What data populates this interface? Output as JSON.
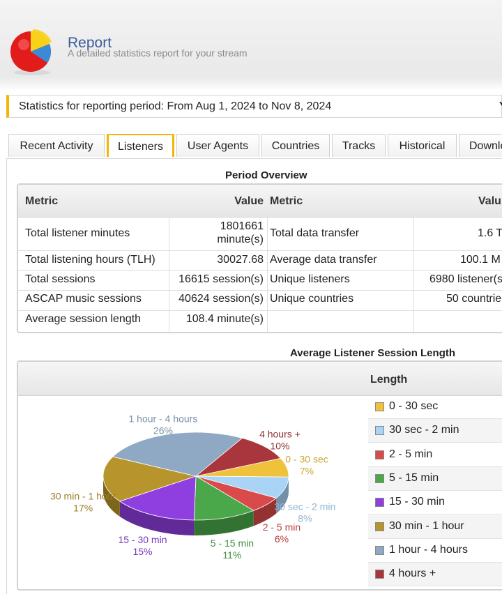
{
  "header": {
    "title": "Report",
    "subtitle": "A detailed statistics report for your stream"
  },
  "period": {
    "text": "Statistics for reporting period: From Aug 1, 2024 to Nov 8, 2024",
    "right_fragment": "Y"
  },
  "tabs": [
    {
      "label": "Recent Activity"
    },
    {
      "label": "Listeners"
    },
    {
      "label": "User Agents"
    },
    {
      "label": "Countries"
    },
    {
      "label": "Tracks"
    },
    {
      "label": "Historical"
    },
    {
      "label": "Downlo"
    }
  ],
  "active_tab": "Listeners",
  "overview": {
    "title": "Period Overview",
    "headers": {
      "metric": "Metric",
      "value": "Value",
      "metric2": "Metric",
      "value2": "Valu"
    },
    "rows": [
      {
        "m1": "Total listener minutes",
        "v1a": "1801661",
        "v1b": "minute(s)",
        "m2": "Total data transfer",
        "v2": "1.6 T"
      },
      {
        "m1": "Total listening hours (TLH)",
        "v1": "30027.68",
        "m2": "Average data transfer",
        "v2": "100.1 M"
      },
      {
        "m1": "Total sessions",
        "v1": "16615 session(s)",
        "m2": "Unique listeners",
        "v2": "6980 listener(s"
      },
      {
        "m1": "ASCAP music sessions",
        "v1": "40624 session(s)",
        "m2": "Unique countries",
        "v2": "50 countrie"
      },
      {
        "m1": "Average session length",
        "v1": "108.4 minute(s)",
        "m2": "",
        "v2": ""
      }
    ]
  },
  "chart_data": {
    "type": "pie",
    "title": "Average Listener Session Length",
    "legend_title": "Length",
    "slices": [
      {
        "label": "0 - 30 sec",
        "percent": 7,
        "percent_label": "7%",
        "color": "#f0c23b"
      },
      {
        "label": "30 sec - 2 min",
        "percent": 8,
        "percent_label": "8%",
        "color": "#a9d4f5"
      },
      {
        "label": "2 - 5 min",
        "percent": 6,
        "percent_label": "6%",
        "color": "#d94a4a"
      },
      {
        "label": "5 - 15 min",
        "percent": 11,
        "percent_label": "11%",
        "color": "#4aa84a"
      },
      {
        "label": "15 - 30 min",
        "percent": 15,
        "percent_label": "15%",
        "color": "#8f3ee0"
      },
      {
        "label": "30 min - 1 hour",
        "percent": 17,
        "percent_label": "17%",
        "color": "#b8952c"
      },
      {
        "label": "1 hour - 4 hours",
        "percent": 26,
        "percent_label": "26%",
        "color": "#8fa9c4"
      },
      {
        "label": "4 hours +",
        "percent": 10,
        "percent_label": "10%",
        "color": "#a8363c"
      }
    ]
  },
  "colors": {
    "accent": "#f2b705",
    "title_blue": "#3a5a9a"
  }
}
